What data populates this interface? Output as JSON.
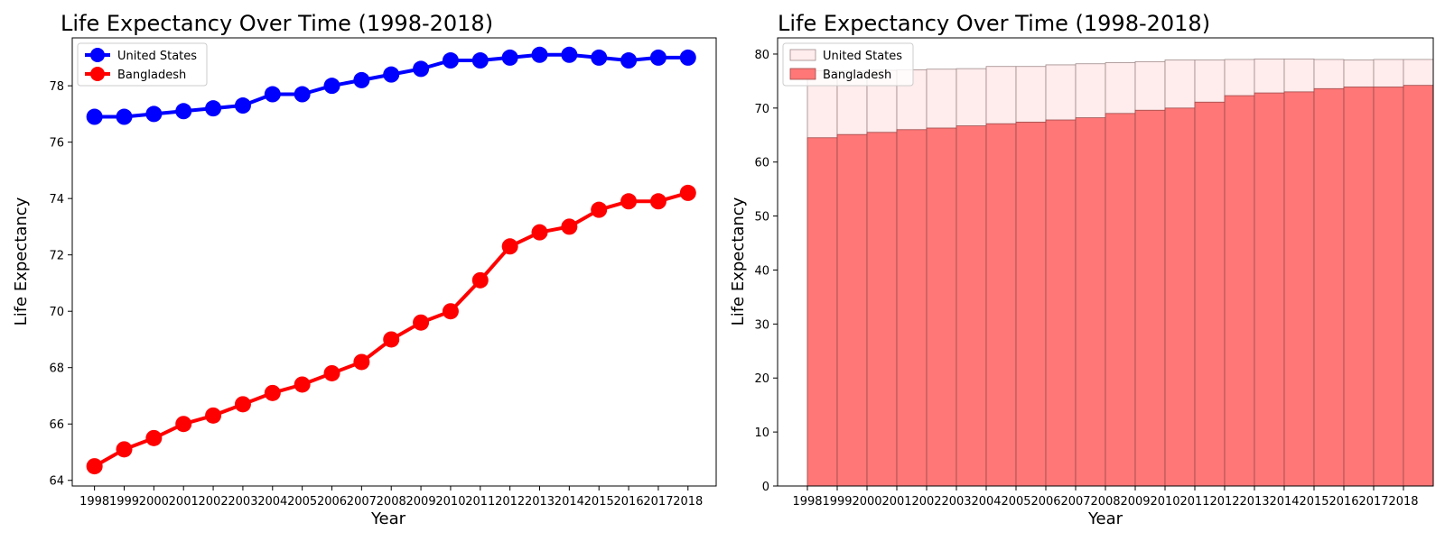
{
  "chart_data": [
    {
      "type": "line",
      "title": "Life Expectancy Over Time (1998-2018)",
      "xlabel": "Year",
      "ylabel": "Life Expectancy",
      "x": [
        1998,
        1999,
        2000,
        2001,
        2002,
        2003,
        2004,
        2005,
        2006,
        2007,
        2008,
        2009,
        2010,
        2011,
        2012,
        2013,
        2014,
        2015,
        2016,
        2017,
        2018
      ],
      "xlim": [
        1997.25,
        2018.95
      ],
      "ylim": [
        63.8,
        79.7
      ],
      "yticks": [
        64,
        66,
        68,
        70,
        72,
        74,
        76,
        78
      ],
      "grid": false,
      "legend_position": "upper-left",
      "series": [
        {
          "name": "United States",
          "color": "#0000ff",
          "values": [
            76.9,
            76.9,
            77.0,
            77.1,
            77.2,
            77.3,
            77.7,
            77.7,
            78.0,
            78.2,
            78.4,
            78.6,
            78.9,
            78.9,
            79.0,
            79.1,
            79.1,
            79.0,
            78.9,
            79.0,
            79.0
          ]
        },
        {
          "name": "Bangladesh",
          "color": "#ff0000",
          "values": [
            64.5,
            65.1,
            65.5,
            66.0,
            66.3,
            66.7,
            67.1,
            67.4,
            67.8,
            68.2,
            69.0,
            69.6,
            70.0,
            71.1,
            72.3,
            72.8,
            73.0,
            73.6,
            73.9,
            73.9,
            74.2
          ]
        }
      ]
    },
    {
      "type": "bar",
      "title": "Life Expectancy Over Time (1998-2018)",
      "xlabel": "Year",
      "ylabel": "Life Expectancy",
      "categories": [
        "1998",
        "1999",
        "2000",
        "2001",
        "2002",
        "2003",
        "2004",
        "2005",
        "2006",
        "2007",
        "2008",
        "2009",
        "2010",
        "2011",
        "2012",
        "2013",
        "2014",
        "2015",
        "2016",
        "2017",
        "2018"
      ],
      "xlim": [
        1997.0,
        2019.0
      ],
      "ylim": [
        0,
        83.0
      ],
      "yticks": [
        0,
        10,
        20,
        30,
        40,
        50,
        60,
        70,
        80
      ],
      "grid": false,
      "legend_position": "upper-left",
      "overlapping": true,
      "series": [
        {
          "name": "United States",
          "fill": "#ffecec",
          "edge": "#a08a8a",
          "values": [
            76.9,
            76.9,
            77.0,
            77.1,
            77.2,
            77.3,
            77.7,
            77.7,
            78.0,
            78.2,
            78.4,
            78.6,
            78.9,
            78.9,
            79.0,
            79.1,
            79.1,
            79.0,
            78.9,
            79.0,
            79.0
          ]
        },
        {
          "name": "Bangladesh",
          "fill": "#ff7777",
          "edge": "#9c4a4a",
          "values": [
            64.5,
            65.1,
            65.5,
            66.0,
            66.3,
            66.7,
            67.1,
            67.4,
            67.8,
            68.2,
            69.0,
            69.6,
            70.0,
            71.1,
            72.3,
            72.8,
            73.0,
            73.6,
            73.9,
            73.9,
            74.2
          ]
        }
      ]
    }
  ]
}
